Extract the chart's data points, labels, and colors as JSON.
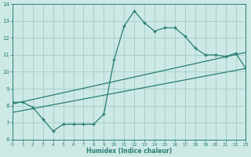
{
  "x": [
    0,
    1,
    2,
    3,
    4,
    5,
    6,
    7,
    8,
    9,
    10,
    11,
    12,
    13,
    14,
    15,
    16,
    17,
    18,
    19,
    20,
    21,
    22,
    23
  ],
  "y_main": [
    8.2,
    8.2,
    7.9,
    7.2,
    6.5,
    6.9,
    6.9,
    6.9,
    6.9,
    7.5,
    10.7,
    12.7,
    13.6,
    12.9,
    12.4,
    12.6,
    12.6,
    12.1,
    11.4,
    11.0,
    11.0,
    10.9,
    11.1,
    10.2
  ],
  "line1_x": [
    0,
    23
  ],
  "line1_y": [
    8.1,
    11.15
  ],
  "line2_x": [
    0,
    23
  ],
  "line2_y": [
    7.6,
    10.2
  ],
  "color": "#2a7d72",
  "bg_color": "#cce9e5",
  "grid_color": "#aacfcc",
  "xlabel": "Humidex (Indice chaleur)",
  "xlim": [
    0,
    23
  ],
  "ylim": [
    6,
    14
  ],
  "yticks": [
    6,
    7,
    8,
    9,
    10,
    11,
    12,
    13,
    14
  ],
  "xticks": [
    0,
    1,
    2,
    3,
    4,
    5,
    6,
    7,
    8,
    9,
    10,
    11,
    12,
    13,
    14,
    15,
    16,
    17,
    18,
    19,
    20,
    21,
    22,
    23
  ]
}
